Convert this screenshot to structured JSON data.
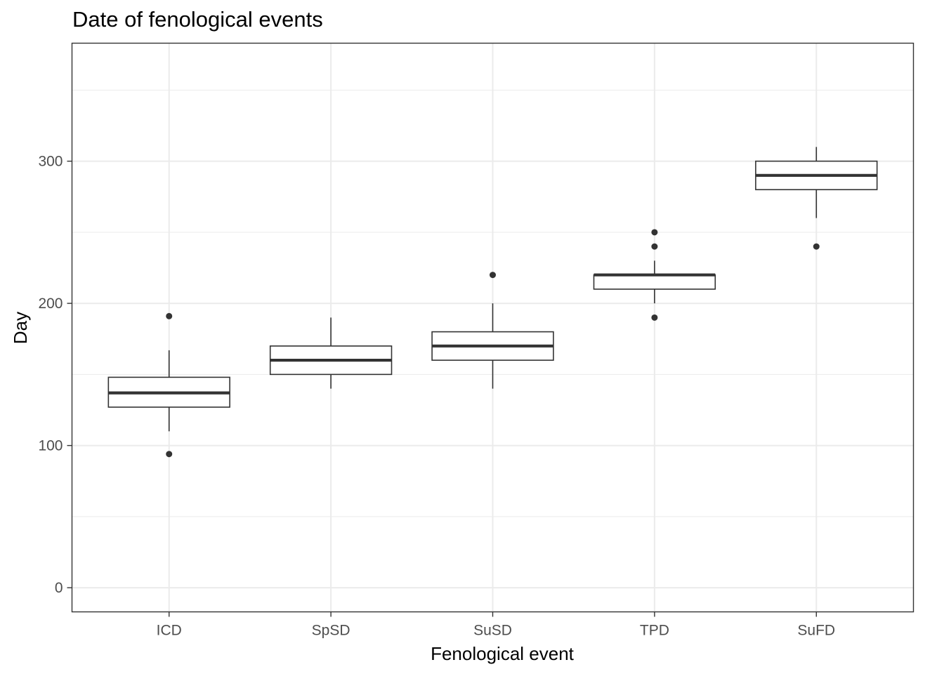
{
  "chart_data": {
    "type": "boxplot",
    "title": "Date of fenological events",
    "xlabel": "Fenological event",
    "ylabel": "Day",
    "ylim": [
      -17,
      383
    ],
    "y_ticks": [
      0,
      100,
      200,
      300
    ],
    "grid": true,
    "categories": [
      "ICD",
      "SpSD",
      "SuSD",
      "TPD",
      "SuFD"
    ],
    "boxes": [
      {
        "category": "ICD",
        "lower_whisker": 110,
        "q1": 127,
        "median": 137,
        "q3": 148,
        "upper_whisker": 167,
        "outliers": [
          94,
          191
        ]
      },
      {
        "category": "SpSD",
        "lower_whisker": 140,
        "q1": 150,
        "median": 160,
        "q3": 170,
        "upper_whisker": 190,
        "outliers": []
      },
      {
        "category": "SuSD",
        "lower_whisker": 140,
        "q1": 160,
        "median": 170,
        "q3": 180,
        "upper_whisker": 200,
        "outliers": [
          220
        ]
      },
      {
        "category": "TPD",
        "lower_whisker": 200,
        "q1": 210,
        "median": 220,
        "q3": 220,
        "upper_whisker": 230,
        "outliers": [
          190,
          240,
          250
        ]
      },
      {
        "category": "SuFD",
        "lower_whisker": 260,
        "q1": 280,
        "median": 290,
        "q3": 300,
        "upper_whisker": 310,
        "outliers": [
          240
        ]
      }
    ],
    "colors": {
      "box_line": "#333333",
      "box_fill": "#ffffff",
      "grid": "#ebebeb",
      "panel_border": "#333333"
    }
  }
}
